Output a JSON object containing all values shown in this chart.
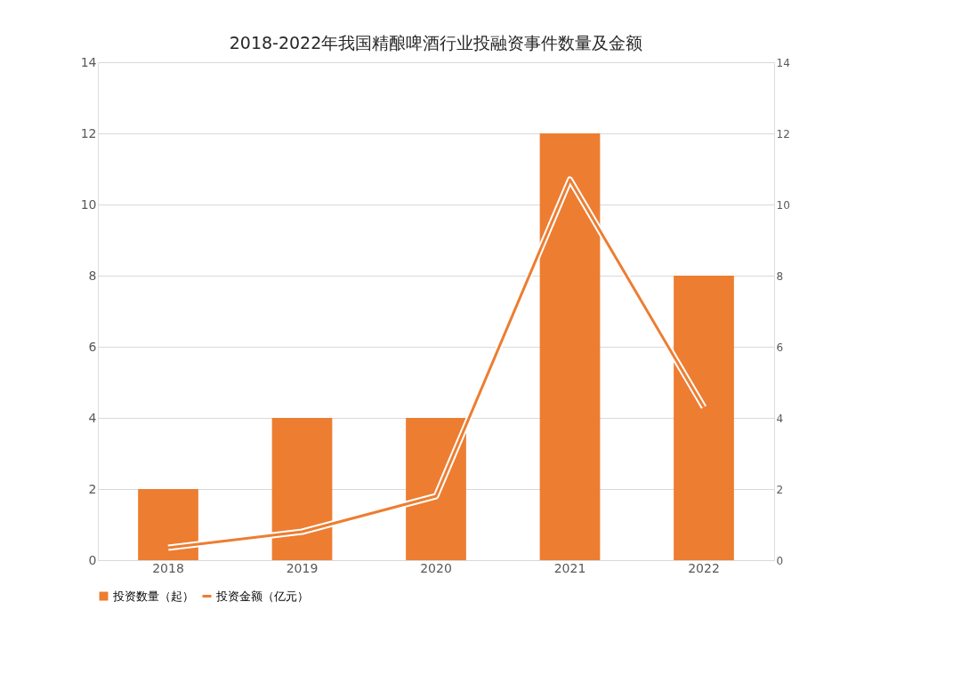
{
  "chart_data": {
    "type": "bar",
    "title": "2018-2022年我国精酿啤酒行业投融资事件数量及金额",
    "categories": [
      "2018",
      "2019",
      "2020",
      "2021",
      "2022"
    ],
    "series": [
      {
        "name": "投资数量（起）",
        "color": "#ed7d31",
        "values": [
          2,
          4,
          4,
          12,
          8
        ]
      },
      {
        "name": "投资金额（亿元）",
        "type": "line",
        "axis": "y2",
        "color": "#ed7d31",
        "values": [
          0.35,
          0.8,
          1.8,
          10.7,
          4.3
        ]
      }
    ],
    "ylim": [
      0,
      14
    ],
    "yticks": [
      0,
      2,
      4,
      6,
      8,
      10,
      12,
      14
    ],
    "y2lim": [
      0,
      14
    ],
    "y2ticks": [
      0,
      2,
      4,
      6,
      8,
      10,
      12,
      14
    ],
    "grid": "y",
    "legend": "bottom"
  }
}
